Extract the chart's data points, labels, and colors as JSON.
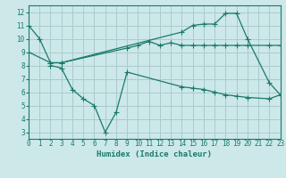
{
  "xlabel": "Humidex (Indice chaleur)",
  "bg_color": "#cce8e8",
  "grid_color": "#aacccc",
  "line_color": "#1a7a6a",
  "line1_x": [
    0,
    1,
    2,
    3,
    14,
    15,
    16,
    17,
    18,
    19,
    20,
    22,
    23
  ],
  "line1_y": [
    11,
    10,
    8.2,
    8.2,
    10.5,
    11.0,
    11.1,
    11.1,
    11.9,
    11.9,
    10.0,
    6.7,
    5.8
  ],
  "line2_x": [
    0,
    2,
    3,
    9,
    10,
    11,
    12,
    13,
    14,
    15,
    16,
    17,
    18,
    19,
    20,
    22,
    23
  ],
  "line2_y": [
    9.0,
    8.2,
    8.2,
    9.3,
    9.5,
    9.8,
    9.5,
    9.7,
    9.5,
    9.5,
    9.5,
    9.5,
    9.5,
    9.5,
    9.5,
    9.5,
    9.5
  ],
  "line3_x": [
    2,
    3,
    4,
    5,
    6,
    7,
    8,
    9,
    14,
    15,
    16,
    17,
    18,
    19,
    20,
    22,
    23
  ],
  "line3_y": [
    8.0,
    7.8,
    6.2,
    5.5,
    5.0,
    3.0,
    4.5,
    7.5,
    6.4,
    6.3,
    6.2,
    6.0,
    5.8,
    5.7,
    5.6,
    5.5,
    5.8
  ],
  "xlim": [
    0,
    23
  ],
  "ylim": [
    2.5,
    12.5
  ],
  "xticks": [
    0,
    1,
    2,
    3,
    4,
    5,
    6,
    7,
    8,
    9,
    10,
    11,
    12,
    13,
    14,
    15,
    16,
    17,
    18,
    19,
    20,
    21,
    22,
    23
  ],
  "yticks": [
    3,
    4,
    5,
    6,
    7,
    8,
    9,
    10,
    11,
    12
  ]
}
